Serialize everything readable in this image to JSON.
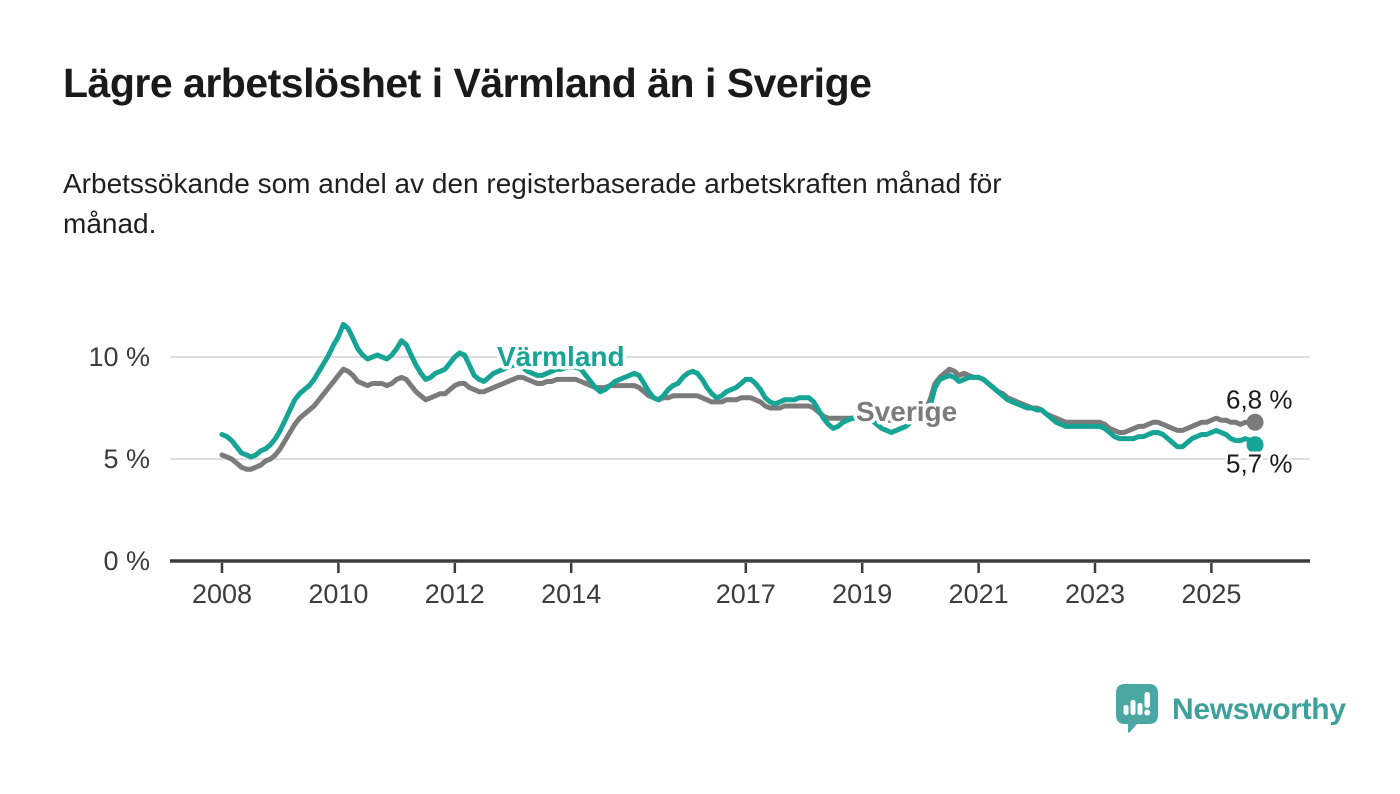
{
  "title": "Lägre arbetslöshet i Värmland än i Sverige",
  "subtitle": "Arbetssökande som andel av den registerbaserade arbetskraften månad för\nmånad.",
  "branding": {
    "name": "Newsworthy",
    "icon": "newsworthy-speech-bubble-bar-chart-icon",
    "icon_color": "#4aa7a1",
    "text_color": "#3ba19a"
  },
  "chart_data": {
    "type": "line",
    "title": "Lägre arbetslöshet i Värmland än i Sverige",
    "unit": "%",
    "x_start": {
      "year": 2008,
      "month": 1
    },
    "x_end": {
      "year": 2025,
      "month": 10
    },
    "x_tick_years": [
      2008,
      2010,
      2012,
      2014,
      2017,
      2019,
      2021,
      2023,
      2025
    ],
    "x_tick_labels": [
      "2008",
      "2010",
      "2012",
      "2014",
      "2017",
      "2019",
      "2021",
      "2023",
      "2025"
    ],
    "y_ticks": [
      {
        "value": 0,
        "label": "0 %"
      },
      {
        "value": 5,
        "label": "5 %"
      },
      {
        "value": 10,
        "label": "10 %"
      }
    ],
    "ylim": [
      0,
      12.3
    ],
    "grid": "horizontal-only",
    "legend": "inline-labels",
    "colors": {
      "axis": "#3c3c3c",
      "gridline": "#dcdcdc",
      "end_label_text": "#1a1a1a"
    },
    "series": [
      {
        "name": "Sverige",
        "color": "#7b7b7b",
        "end_value": 6.8,
        "end_label": "6,8 %",
        "values": [
          5.2,
          5.1,
          5.0,
          4.8,
          4.6,
          4.5,
          4.5,
          4.6,
          4.7,
          4.9,
          5.0,
          5.2,
          5.5,
          5.9,
          6.3,
          6.7,
          7.0,
          7.2,
          7.4,
          7.6,
          7.9,
          8.2,
          8.5,
          8.8,
          9.1,
          9.4,
          9.3,
          9.1,
          8.8,
          8.7,
          8.6,
          8.7,
          8.7,
          8.7,
          8.6,
          8.7,
          8.9,
          9.0,
          8.9,
          8.6,
          8.3,
          8.1,
          7.9,
          8.0,
          8.1,
          8.2,
          8.2,
          8.4,
          8.6,
          8.7,
          8.7,
          8.5,
          8.4,
          8.3,
          8.3,
          8.4,
          8.5,
          8.6,
          8.7,
          8.8,
          8.9,
          9.0,
          9.0,
          8.9,
          8.8,
          8.7,
          8.7,
          8.8,
          8.8,
          8.9,
          8.9,
          8.9,
          8.9,
          8.9,
          8.8,
          8.7,
          8.6,
          8.5,
          8.5,
          8.5,
          8.6,
          8.6,
          8.6,
          8.6,
          8.6,
          8.6,
          8.5,
          8.3,
          8.1,
          8.0,
          7.9,
          8.0,
          8.0,
          8.1,
          8.1,
          8.1,
          8.1,
          8.1,
          8.1,
          8.0,
          7.9,
          7.8,
          7.8,
          7.8,
          7.9,
          7.9,
          7.9,
          8.0,
          8.0,
          8.0,
          7.9,
          7.8,
          7.6,
          7.5,
          7.5,
          7.5,
          7.6,
          7.6,
          7.6,
          7.6,
          7.6,
          7.6,
          7.5,
          7.3,
          7.1,
          7.0,
          7.0,
          7.0,
          7.0,
          7.0,
          7.0,
          7.1,
          7.1,
          7.1,
          7.0,
          6.9,
          6.9,
          6.9,
          6.9,
          6.9,
          7.0,
          7.0,
          7.1,
          7.2,
          7.3,
          7.4,
          7.9,
          8.7,
          9.0,
          9.2,
          9.4,
          9.3,
          9.1,
          9.2,
          9.1,
          9.0,
          9.0,
          8.9,
          8.7,
          8.5,
          8.3,
          8.2,
          8.0,
          7.9,
          7.8,
          7.7,
          7.6,
          7.5,
          7.5,
          7.4,
          7.2,
          7.1,
          7.0,
          6.9,
          6.8,
          6.8,
          6.8,
          6.8,
          6.8,
          6.8,
          6.8,
          6.8,
          6.7,
          6.5,
          6.4,
          6.3,
          6.3,
          6.4,
          6.5,
          6.6,
          6.6,
          6.7,
          6.8,
          6.8,
          6.7,
          6.6,
          6.5,
          6.4,
          6.4,
          6.5,
          6.6,
          6.7,
          6.8,
          6.8,
          6.9,
          7.0,
          6.9,
          6.9,
          6.8,
          6.8,
          6.7,
          6.8,
          6.8,
          6.8
        ]
      },
      {
        "name": "Värmland",
        "color": "#16a495",
        "end_value": 5.7,
        "end_label": "5,7 %",
        "values": [
          6.2,
          6.1,
          5.9,
          5.6,
          5.3,
          5.2,
          5.1,
          5.2,
          5.4,
          5.5,
          5.7,
          6.0,
          6.4,
          6.9,
          7.4,
          7.9,
          8.2,
          8.4,
          8.6,
          8.9,
          9.3,
          9.7,
          10.1,
          10.6,
          11.0,
          11.6,
          11.4,
          10.9,
          10.4,
          10.1,
          9.9,
          10.0,
          10.1,
          10.0,
          9.9,
          10.1,
          10.4,
          10.8,
          10.6,
          10.1,
          9.6,
          9.2,
          8.9,
          9.0,
          9.2,
          9.3,
          9.4,
          9.7,
          10.0,
          10.2,
          10.1,
          9.6,
          9.1,
          8.9,
          8.8,
          9.0,
          9.2,
          9.3,
          9.4,
          9.5,
          9.6,
          9.6,
          9.5,
          9.3,
          9.2,
          9.1,
          9.1,
          9.2,
          9.3,
          9.4,
          9.4,
          9.5,
          9.5,
          9.5,
          9.4,
          9.1,
          8.8,
          8.5,
          8.3,
          8.4,
          8.6,
          8.8,
          8.9,
          9.0,
          9.1,
          9.2,
          9.1,
          8.7,
          8.3,
          8.0,
          7.9,
          8.1,
          8.4,
          8.6,
          8.7,
          9.0,
          9.2,
          9.3,
          9.2,
          8.9,
          8.5,
          8.2,
          8.0,
          8.1,
          8.3,
          8.4,
          8.5,
          8.7,
          8.9,
          8.9,
          8.7,
          8.4,
          8.0,
          7.8,
          7.7,
          7.8,
          7.9,
          7.9,
          7.9,
          8.0,
          8.0,
          8.0,
          7.8,
          7.4,
          7.0,
          6.7,
          6.5,
          6.6,
          6.8,
          6.9,
          7.0,
          7.0,
          7.1,
          7.1,
          6.9,
          6.7,
          6.5,
          6.4,
          6.3,
          6.4,
          6.5,
          6.6,
          6.8,
          7.0,
          7.0,
          7.0,
          7.6,
          8.5,
          8.9,
          9.0,
          9.1,
          9.0,
          8.8,
          8.9,
          9.0,
          9.0,
          9.0,
          8.9,
          8.7,
          8.5,
          8.3,
          8.1,
          7.9,
          7.8,
          7.7,
          7.6,
          7.5,
          7.5,
          7.4,
          7.4,
          7.2,
          7.0,
          6.8,
          6.7,
          6.6,
          6.6,
          6.6,
          6.6,
          6.6,
          6.6,
          6.6,
          6.6,
          6.5,
          6.3,
          6.1,
          6.0,
          6.0,
          6.0,
          6.0,
          6.1,
          6.1,
          6.2,
          6.3,
          6.3,
          6.2,
          6.0,
          5.8,
          5.6,
          5.6,
          5.8,
          6.0,
          6.1,
          6.2,
          6.2,
          6.3,
          6.4,
          6.3,
          6.2,
          6.0,
          5.9,
          5.9,
          6.0,
          5.9,
          5.7
        ]
      }
    ]
  }
}
